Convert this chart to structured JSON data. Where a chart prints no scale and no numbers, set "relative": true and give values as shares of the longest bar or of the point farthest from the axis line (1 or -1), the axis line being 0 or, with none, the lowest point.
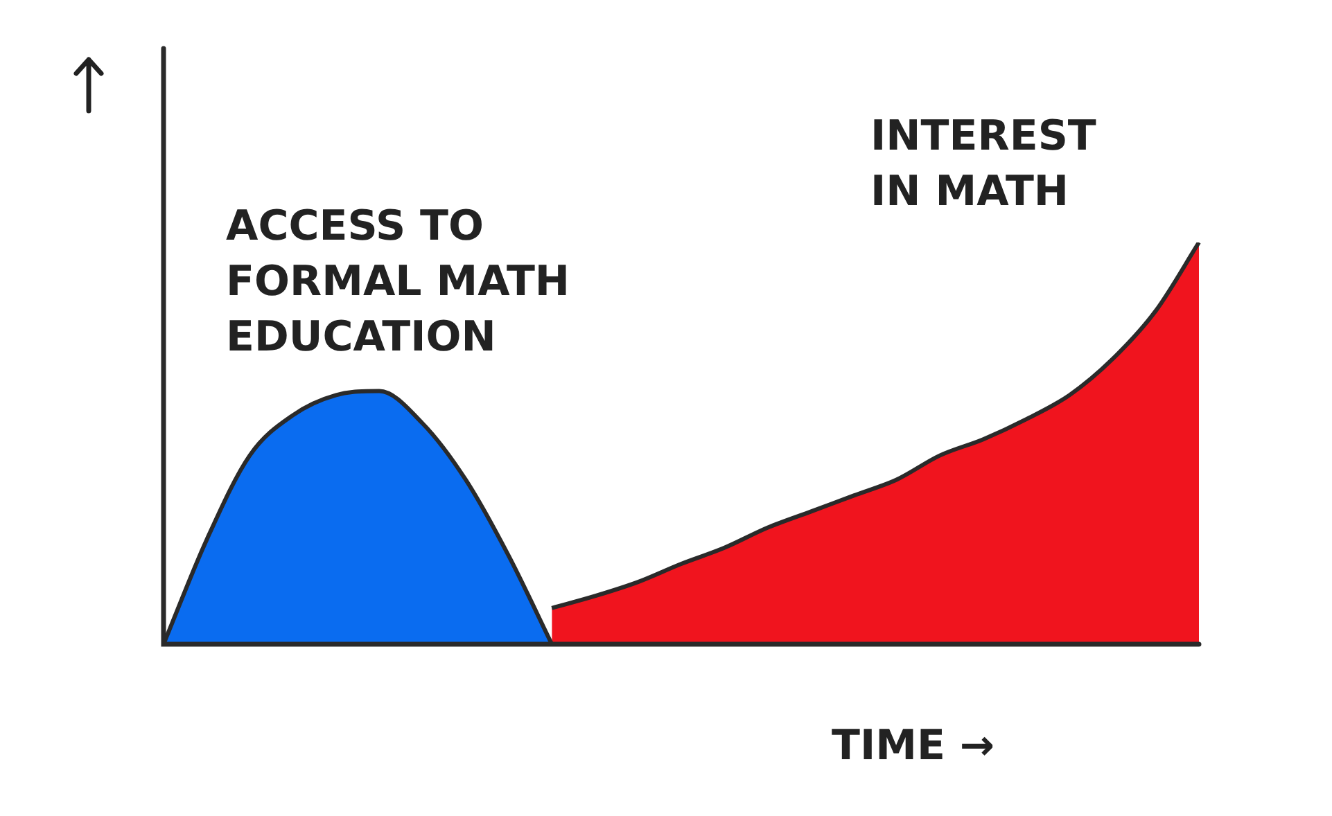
{
  "chart_data": {
    "type": "area",
    "relative": true,
    "xlabel": "TIME →",
    "legend": false,
    "categories": [
      null,
      null,
      null,
      null,
      null,
      null,
      null,
      null,
      null,
      null,
      null,
      null,
      null,
      null,
      null,
      null,
      null,
      null,
      null,
      null,
      null,
      null,
      null,
      null,
      null
    ],
    "series": [
      {
        "name": "ACCESS TO FORMAL MATH EDUCATION",
        "color": "#0a6cf0",
        "values": [
          0,
          0.26,
          0.47,
          0.57,
          0.62,
          0.63,
          0.55,
          0.41,
          0.22,
          0,
          null,
          null,
          null,
          null,
          null,
          null,
          null,
          null,
          null,
          null,
          null,
          null,
          null,
          null,
          null
        ]
      },
      {
        "name": "INTEREST IN MATH",
        "color": "#f0141e",
        "values": [
          null,
          null,
          null,
          null,
          null,
          null,
          null,
          null,
          null,
          0.09,
          0.12,
          0.155,
          0.2,
          0.24,
          0.29,
          0.33,
          0.37,
          0.41,
          0.47,
          0.51,
          0.56,
          0.62,
          0.71,
          0.83,
          1
        ]
      }
    ]
  }
}
